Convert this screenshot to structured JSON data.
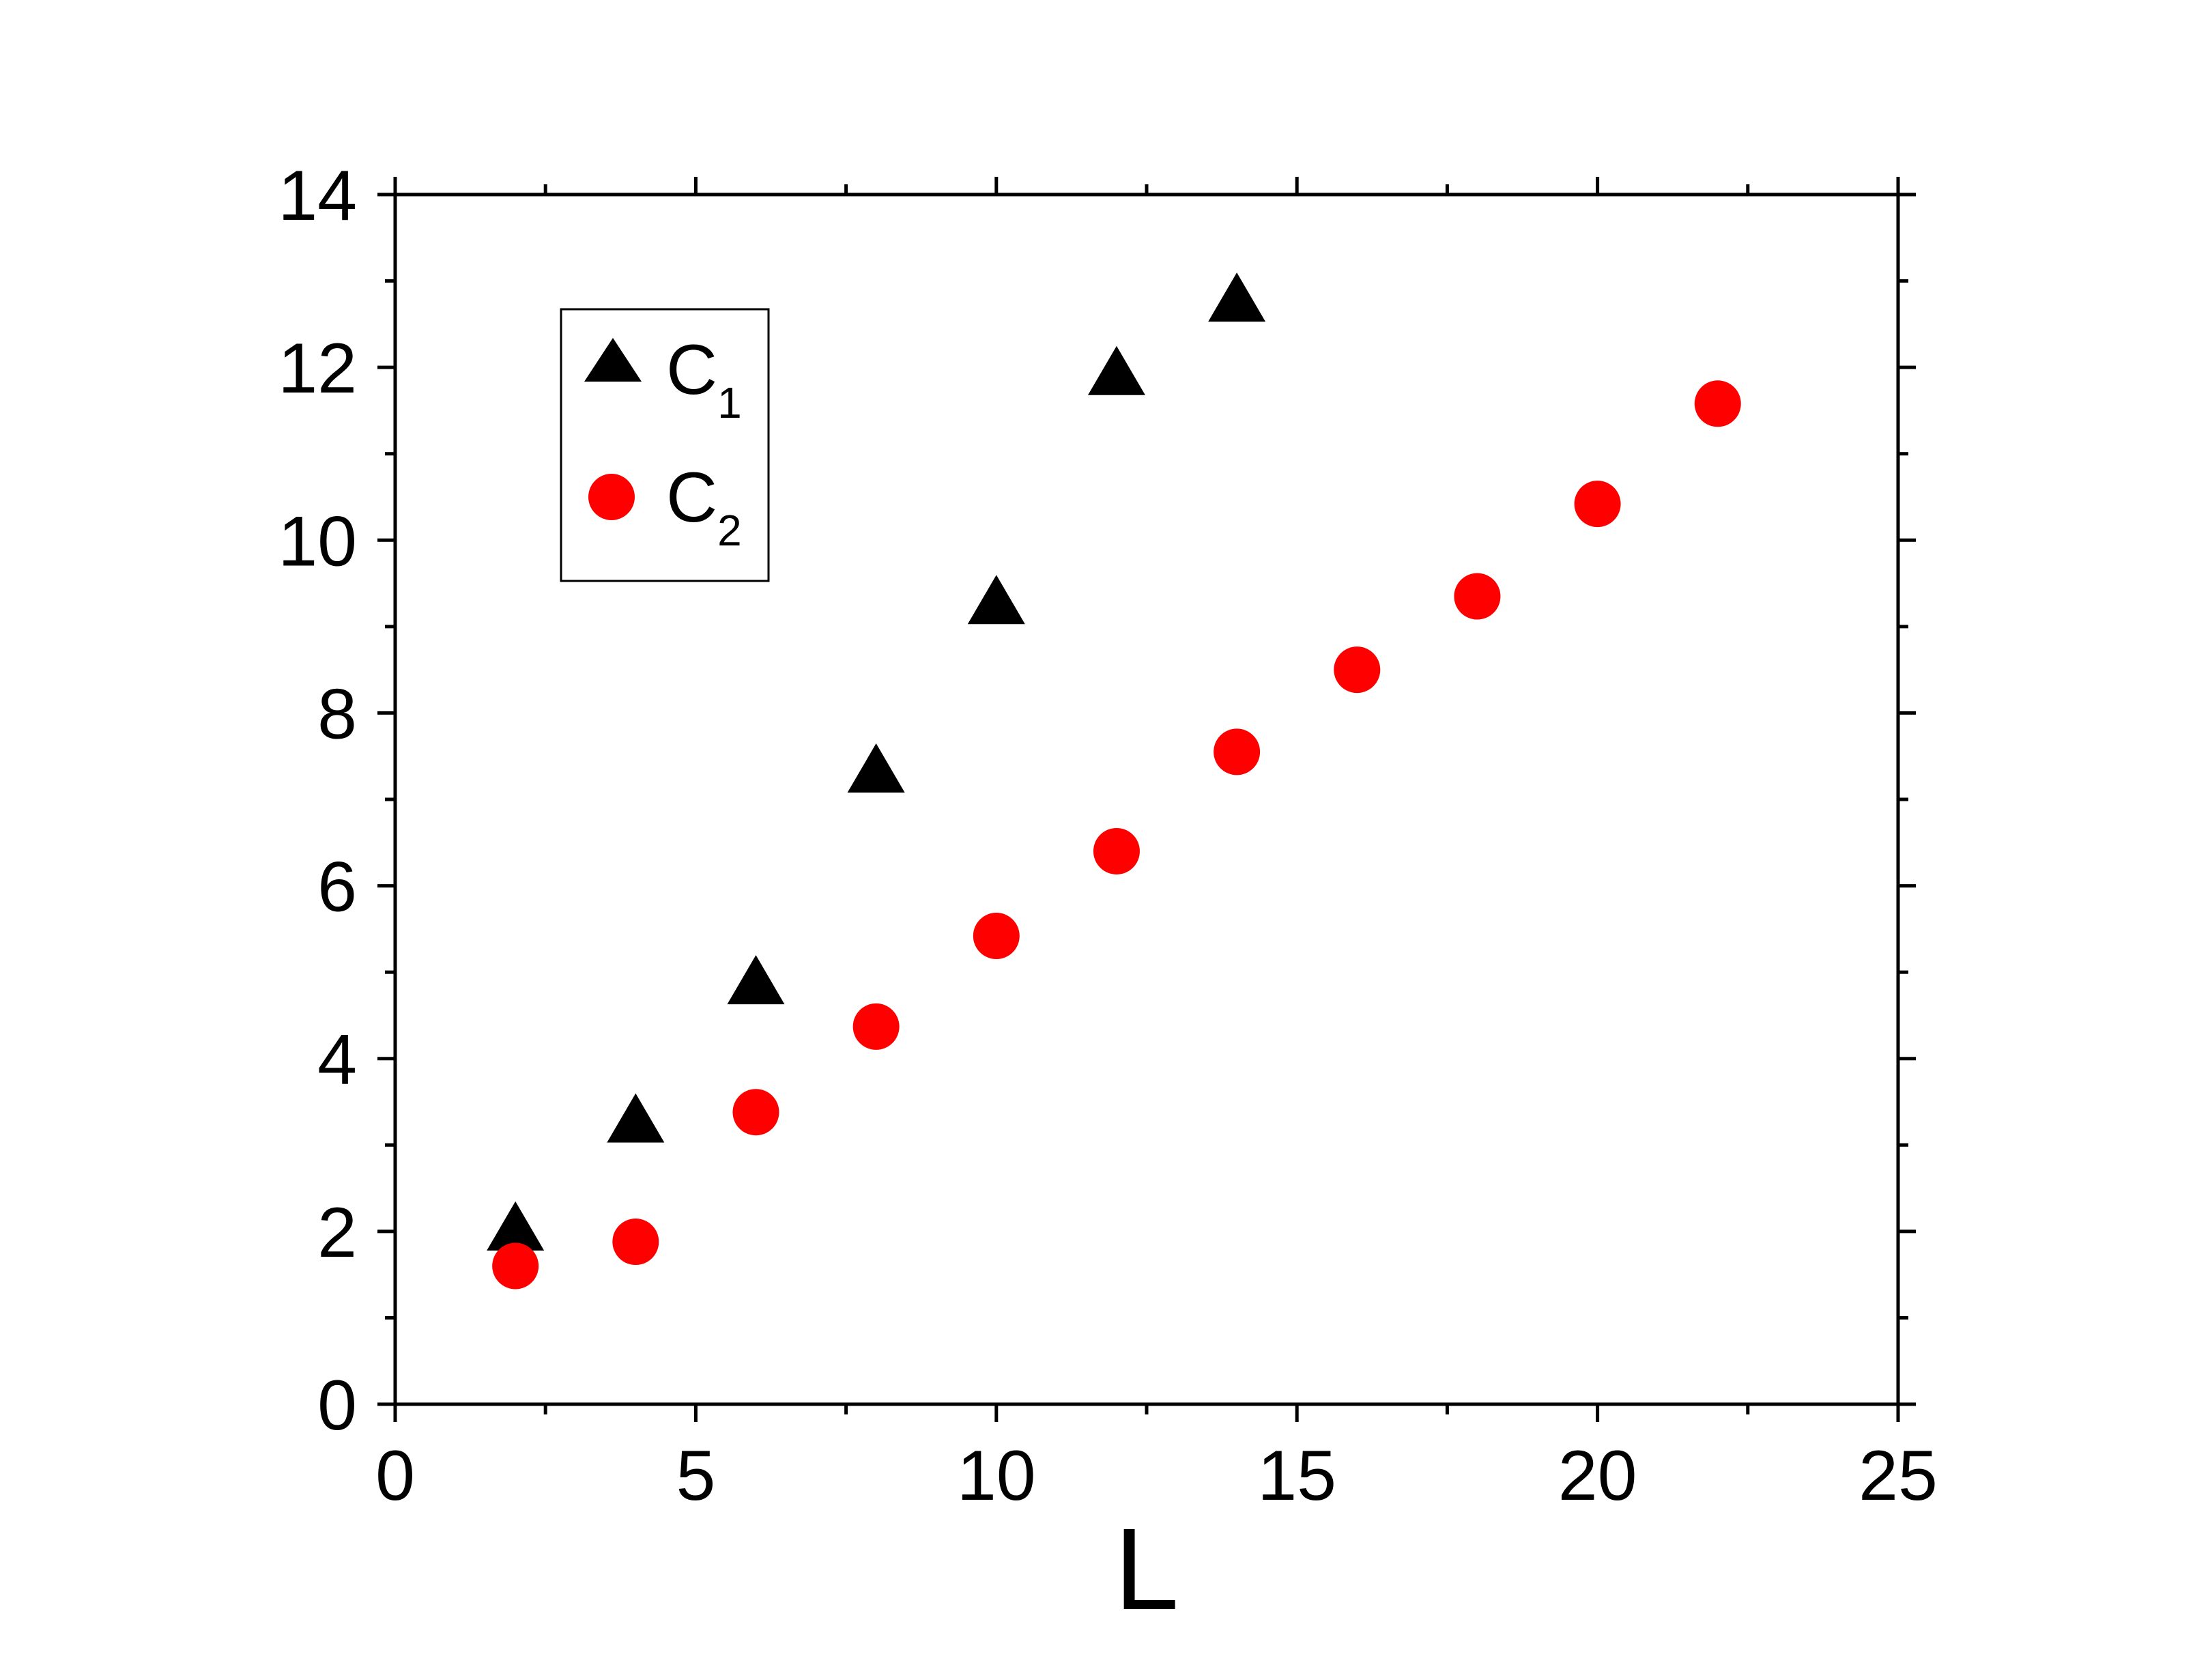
{
  "chart_data": {
    "type": "scatter",
    "title": "",
    "xlabel": "L",
    "ylabel": "",
    "xlim": [
      0,
      25
    ],
    "ylim": [
      0,
      14
    ],
    "x_ticks": [
      "0",
      "5",
      "10",
      "15",
      "20",
      "25"
    ],
    "y_ticks": [
      "0",
      "2",
      "4",
      "6",
      "8",
      "10",
      "12",
      "14"
    ],
    "grid": false,
    "legend_position": "top-left",
    "series": [
      {
        "name": "C",
        "name_subscript": "1",
        "marker": "triangle",
        "color": "#000000",
        "x": [
          2,
          4,
          6,
          8,
          10,
          12,
          14
        ],
        "y": [
          2.0,
          3.25,
          4.85,
          7.3,
          9.25,
          11.9,
          12.75
        ]
      },
      {
        "name": "C",
        "name_subscript": "2",
        "marker": "circle",
        "color": "#ff0000",
        "x": [
          2,
          4,
          6,
          8,
          10,
          12,
          14,
          16,
          18,
          20,
          22
        ],
        "y": [
          1.6,
          1.88,
          3.38,
          4.37,
          5.42,
          6.4,
          7.55,
          8.5,
          9.35,
          10.42,
          11.58
        ]
      }
    ]
  }
}
